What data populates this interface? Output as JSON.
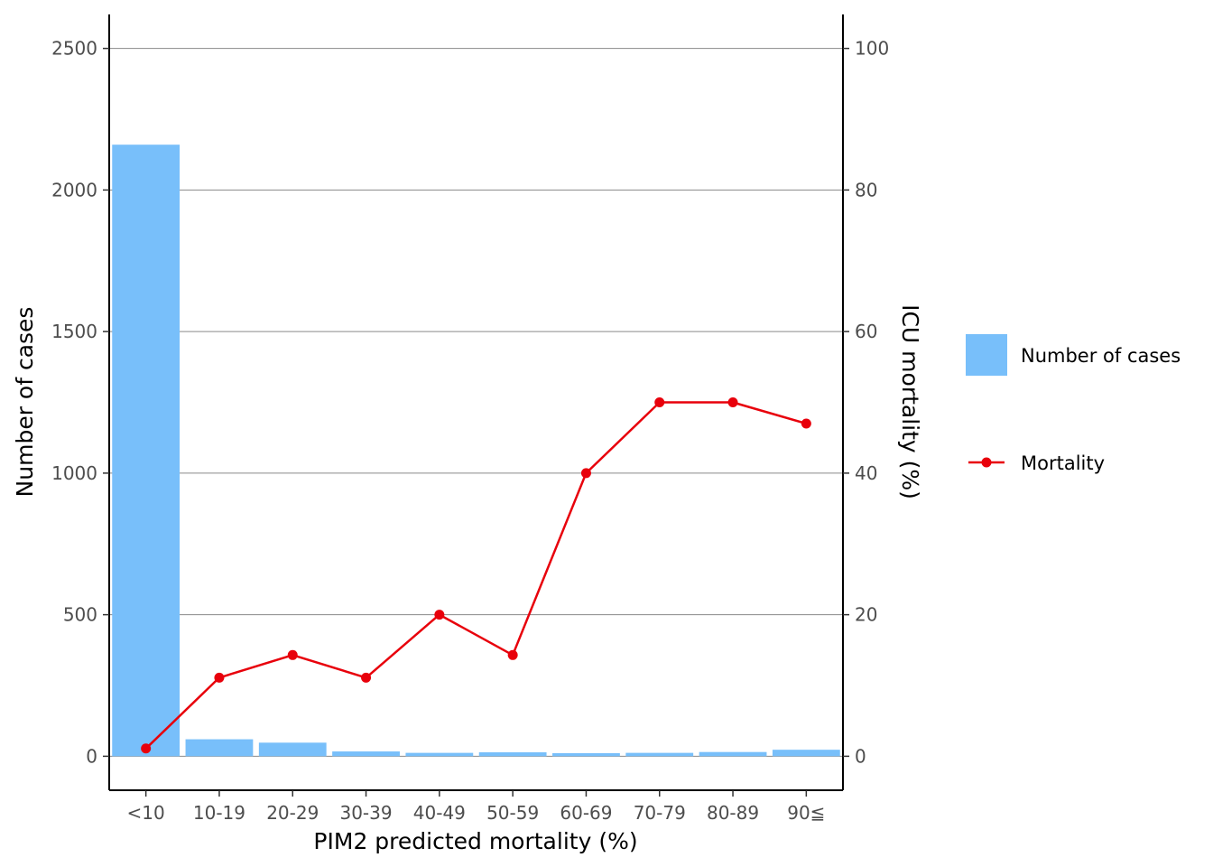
{
  "chart_data": {
    "type": "bar",
    "xlabel": "PIM2 predicted mortality (%)",
    "ylabel": "Number of cases",
    "y2label": "ICU mortality (%)",
    "categories": [
      "<10",
      "10-19",
      "20-29",
      "30-39",
      "40-49",
      "50-59",
      "60-69",
      "70-79",
      "80-89",
      "90≦"
    ],
    "ylim": [
      -120,
      2620
    ],
    "yticks": [
      0,
      500,
      1000,
      1500,
      2000,
      2500
    ],
    "y2lim": [
      -4.8,
      104.8
    ],
    "y2ticks": [
      0,
      20,
      40,
      60,
      80,
      100
    ],
    "grid": "horizontal major lines",
    "legend_position": "right",
    "bar_color": "#78BFFA",
    "line_color": "#E8000B",
    "series": [
      {
        "name": "Number of cases",
        "type": "bar",
        "axis": "left",
        "values": [
          2160,
          60,
          48,
          17,
          12,
          14,
          11,
          12,
          15,
          23
        ]
      },
      {
        "name": "Mortality",
        "type": "line",
        "axis": "right",
        "values": [
          1.1,
          11.1,
          14.3,
          11.1,
          20.0,
          14.3,
          40.0,
          50.0,
          50.0,
          47.0
        ]
      }
    ]
  }
}
